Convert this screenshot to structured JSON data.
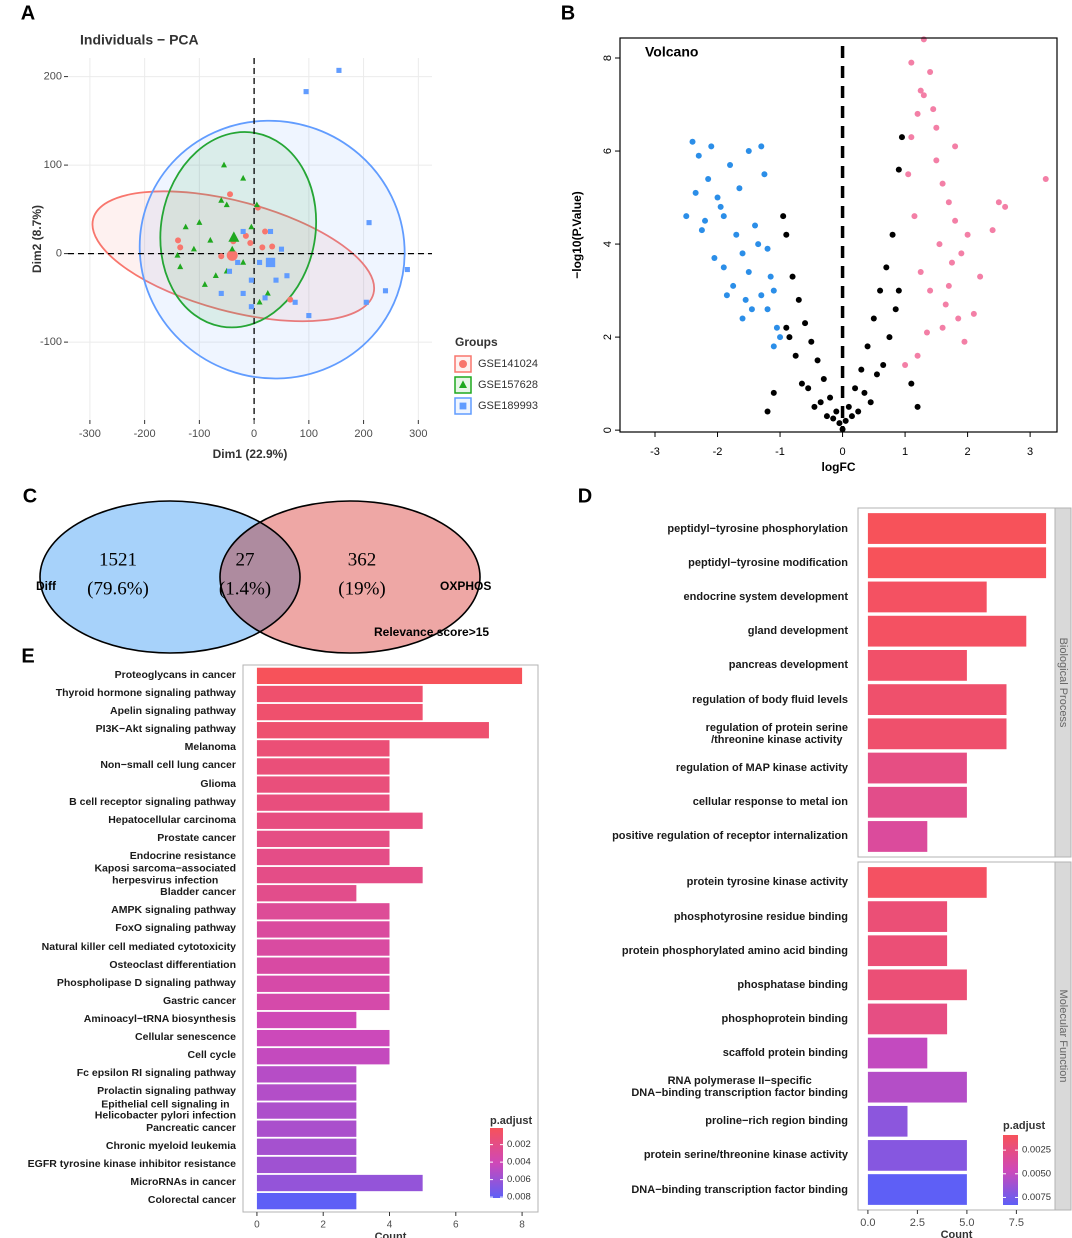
{
  "chart_data": [
    {
      "type": "pca",
      "panel_label": "A",
      "title": "Individuals − PCA",
      "xlabel": "Dim1 (22.9%)",
      "ylabel": "Dim2 (8.7%)",
      "xlim": [
        -340,
        325
      ],
      "ylim": [
        -188,
        221
      ],
      "xticks": [
        -300,
        -200,
        -100,
        0,
        100,
        200,
        300
      ],
      "yticks": [
        -100,
        0,
        100,
        200
      ],
      "vline": 0,
      "hline": 0,
      "grid": true,
      "legend_title": "Groups",
      "series": [
        {
          "name": "GSE141024",
          "color": "#f8766d",
          "marker": "circle",
          "x": [
            -139,
            -135,
            66,
            15,
            7,
            20,
            -38,
            -60,
            -7,
            -15,
            33,
            -44
          ],
          "y": [
            15,
            7,
            -52,
            7,
            52,
            25,
            14,
            -3,
            12,
            20,
            8,
            67
          ],
          "centroid": [
            -40,
            -2
          ],
          "ellipse": {
            "center": [
              -38,
              -3
            ],
            "radii": [
              265,
              62
            ],
            "angle": 15
          }
        },
        {
          "name": "GSE157628",
          "color": "#1fa81f",
          "marker": "triangle",
          "x": [
            -55,
            -20,
            -50,
            -100,
            -135,
            -140,
            -110,
            -80,
            -40,
            -90,
            -50,
            10,
            25,
            -5,
            -60,
            -125,
            -20,
            5,
            -70
          ],
          "y": [
            100,
            85,
            55,
            35,
            -15,
            -2,
            5,
            15,
            5,
            -35,
            -20,
            -55,
            -45,
            30,
            60,
            30,
            -10,
            55,
            -25
          ],
          "centroid": [
            -37,
            18
          ],
          "ellipse": {
            "center": [
              -29,
              27
            ],
            "radii": [
              141,
              111
            ],
            "angle": 10
          }
        },
        {
          "name": "GSE189993",
          "color": "#619cff",
          "marker": "square",
          "x": [
            155,
            95,
            30,
            210,
            280,
            240,
            205,
            -45,
            -30,
            -20,
            -5,
            20,
            100,
            -5,
            40,
            10,
            60,
            -20,
            50,
            -60,
            75
          ],
          "y": [
            207,
            183,
            25,
            35,
            -18,
            -42,
            -55,
            -20,
            -10,
            -45,
            -30,
            -50,
            -70,
            -60,
            -30,
            -10,
            -25,
            25,
            5,
            -45,
            -55
          ],
          "centroid": [
            30,
            -10
          ],
          "ellipse": {
            "center": [
              33,
              4.5
            ],
            "radii": [
              243,
              145
            ],
            "angle": 20
          }
        }
      ]
    },
    {
      "type": "volcano",
      "panel_label": "B",
      "title": "Volcano",
      "xlabel": "logFC",
      "ylabel": "−log10(P.Value)",
      "xlim": [
        -3.56,
        3.43
      ],
      "ylim": [
        -0.04,
        8.43
      ],
      "xticks": [
        -3,
        -2,
        -1,
        0,
        1,
        2,
        3
      ],
      "yticks": [
        0,
        2,
        4,
        6,
        8
      ],
      "vline": 0,
      "series": [
        {
          "color": "#000000",
          "x": [
            0,
            0.05,
            -0.05,
            0.1,
            -0.1,
            0.2,
            -0.2,
            0.3,
            -0.3,
            0.4,
            -0.4,
            0.5,
            -0.5,
            0.6,
            -0.6,
            0.7,
            -0.7,
            0.8,
            -0.8,
            0.9,
            -0.9,
            0.95,
            -0.95,
            0.15,
            -0.15,
            0.35,
            -0.35,
            0.55,
            -0.55,
            0.75,
            -0.75,
            0.85,
            -0.85,
            0.45,
            -0.45,
            0.65,
            -0.65,
            1.1,
            -1.1,
            1.2,
            -1.2,
            0.25,
            -0.25,
            0.9,
            -0.9
          ],
          "y": [
            0.02,
            0.2,
            0.15,
            0.5,
            0.4,
            0.9,
            0.7,
            1.3,
            1.1,
            1.8,
            1.5,
            2.4,
            1.9,
            3.0,
            2.3,
            3.5,
            2.8,
            4.2,
            3.3,
            5.6,
            4.2,
            6.3,
            4.6,
            0.3,
            0.25,
            0.8,
            0.6,
            1.2,
            0.9,
            2.0,
            1.6,
            2.6,
            2.0,
            0.6,
            0.5,
            1.4,
            1.0,
            1.0,
            0.8,
            0.5,
            0.4,
            0.4,
            0.3,
            3.0,
            2.2
          ]
        },
        {
          "color": "#2b8ee8",
          "x": [
            -2.5,
            -2.4,
            -2.3,
            -2.2,
            -2.1,
            -2.0,
            -1.9,
            -1.8,
            -1.7,
            -1.6,
            -1.5,
            -1.4,
            -1.3,
            -1.2,
            -1.1,
            -1.05,
            -2.25,
            -2.05,
            -1.85,
            -1.65,
            -1.45,
            -1.25,
            -1.15,
            -1.95,
            -1.75,
            -1.55,
            -1.35,
            -2.15,
            -1.9,
            -1.6,
            -1.3,
            -1.1,
            -2.35,
            -1.5,
            -1.2,
            -1.0
          ],
          "y": [
            4.6,
            6.2,
            5.9,
            4.5,
            6.1,
            5.0,
            3.5,
            5.7,
            4.2,
            3.8,
            6.0,
            4.4,
            6.1,
            3.9,
            3.0,
            2.2,
            4.3,
            3.7,
            2.9,
            5.2,
            2.6,
            5.5,
            3.3,
            4.8,
            3.1,
            2.8,
            4.0,
            5.4,
            4.6,
            2.4,
            2.9,
            1.8,
            5.1,
            3.4,
            2.6,
            2.0
          ]
        },
        {
          "color": "#f37fa6",
          "x": [
            1.1,
            1.2,
            1.3,
            1.4,
            1.5,
            1.6,
            1.7,
            1.8,
            1.9,
            2.0,
            2.1,
            2.2,
            2.5,
            2.6,
            3.25,
            1.05,
            1.15,
            1.25,
            1.35,
            1.45,
            1.55,
            1.65,
            1.75,
            1.85,
            1.95,
            1.3,
            1.5,
            1.2,
            1.4,
            1.6,
            1.1,
            1.8,
            2.4,
            1.7,
            1.0,
            1.25
          ],
          "y": [
            7.9,
            6.8,
            7.2,
            7.7,
            6.5,
            5.3,
            4.9,
            6.1,
            3.8,
            4.2,
            2.5,
            3.3,
            4.9,
            4.8,
            5.4,
            5.5,
            4.6,
            3.4,
            2.1,
            6.9,
            4.0,
            2.7,
            3.6,
            2.4,
            1.9,
            8.4,
            5.8,
            1.6,
            3.0,
            2.2,
            6.3,
            4.5,
            4.3,
            3.1,
            1.4,
            7.3
          ]
        }
      ]
    },
    {
      "type": "venn",
      "panel_label": "C",
      "sets": [
        "Diff",
        "OXPHOS"
      ],
      "values": [
        1521,
        27,
        362
      ],
      "percent_labels": [
        "(79.6%)",
        "(1.4%)",
        "(19%)"
      ],
      "annotation": "Relevance score>15"
    },
    {
      "type": "hbar",
      "panel_label": "D",
      "xlabel": "Count",
      "xlim": [
        -0.5,
        9.45
      ],
      "xticks": [
        {
          "value": 0,
          "label": "0.0"
        },
        2.5,
        {
          "value": 5,
          "label": "5.0"
        },
        7.5
      ],
      "legend_title": "p.adjust",
      "clim": [
        0.0009,
        0.0083
      ],
      "colormap": [
        "#f7525a",
        "#cf48b8",
        "#5e5ff6"
      ],
      "legend_ticks": [
        0.0025,
        {
          "value": 0.005,
          "label": "0.0050"
        },
        0.0075
      ],
      "facets": [
        {
          "name": "Biological Process",
          "categories": [
            "peptidyl−tyrosine phosphorylation",
            "peptidyl−tyrosine modification",
            "endocrine system development",
            "gland development",
            "pancreas development",
            "regulation of body fluid levels",
            "regulation of protein serine\n/threonine kinase activity",
            "regulation of MAP kinase activity",
            "cellular response to metal ion",
            "positive regulation of receptor internalization"
          ],
          "values": [
            9,
            9,
            6,
            8,
            5,
            7,
            7,
            5,
            5,
            3
          ],
          "p_adjust": [
            0.0009,
            0.0009,
            0.0012,
            0.0012,
            0.0015,
            0.0016,
            0.0016,
            0.0025,
            0.0028,
            0.0035
          ]
        },
        {
          "name": "Molecular Function",
          "categories": [
            "protein tyrosine kinase activity",
            "phosphotyrosine residue binding",
            "protein phosphorylated amino acid binding",
            "phosphatase binding",
            "phosphoprotein binding",
            "scaffold protein binding",
            "RNA polymerase II−specific\nDNA−binding transcription factor binding",
            "proline−rich region binding",
            "protein serine/threonine kinase activity",
            "DNA−binding transcription factor binding"
          ],
          "values": [
            6,
            4,
            4,
            5,
            4,
            3,
            5,
            2,
            5,
            5
          ],
          "p_adjust": [
            0.0012,
            0.002,
            0.002,
            0.002,
            0.0025,
            0.005,
            0.0055,
            0.0068,
            0.007,
            0.0083
          ]
        }
      ]
    },
    {
      "type": "hbar",
      "panel_label": "E",
      "xlabel": "Count",
      "xlim": [
        -0.42,
        8.48
      ],
      "xticks": [
        0,
        2,
        4,
        6,
        8
      ],
      "legend_title": "p.adjust",
      "clim": [
        0.0001,
        0.0081
      ],
      "colormap": [
        "#f7525a",
        "#cf48b8",
        "#5e5ff6"
      ],
      "legend_ticks": [
        0.002,
        0.004,
        0.006,
        0.008
      ],
      "categories": [
        "Proteoglycans in cancer",
        "Thyroid hormone signaling pathway",
        "Apelin signaling pathway",
        "PI3K−Akt signaling pathway",
        "Melanoma",
        "Non−small cell lung cancer",
        "Glioma",
        "B cell receptor signaling pathway",
        "Hepatocellular carcinoma",
        "Prostate cancer",
        "Endocrine resistance",
        "Kaposi sarcoma−associated\nherpesvirus infection",
        "Bladder cancer",
        "AMPK signaling pathway",
        "FoxO signaling pathway",
        "Natural killer cell mediated cytotoxicity",
        "Osteoclast differentiation",
        "Phospholipase D signaling pathway",
        "Gastric cancer",
        "Aminoacyl−tRNA biosynthesis",
        "Cellular senescence",
        "Cell cycle",
        "Fc epsilon RI signaling pathway",
        "Prolactin signaling pathway",
        "Epithelial cell signaling in\nHelicobacter pylori infection",
        "Pancreatic cancer",
        "Chronic myeloid leukemia",
        "EGFR tyrosine kinase inhibitor resistance",
        "MicroRNAs in cancer",
        "Colorectal cancer"
      ],
      "values": [
        8,
        5,
        5,
        7,
        4,
        4,
        4,
        4,
        5,
        4,
        4,
        5,
        3,
        4,
        4,
        4,
        4,
        4,
        4,
        3,
        4,
        4,
        3,
        3,
        3,
        3,
        3,
        3,
        5,
        3
      ],
      "p_adjust": [
        0.0001,
        0.0009,
        0.0009,
        0.001,
        0.0013,
        0.0014,
        0.0015,
        0.0016,
        0.0017,
        0.0019,
        0.002,
        0.002,
        0.0022,
        0.0027,
        0.003,
        0.0031,
        0.0032,
        0.0034,
        0.0035,
        0.004,
        0.0042,
        0.0045,
        0.005,
        0.0051,
        0.0053,
        0.0054,
        0.0056,
        0.0058,
        0.0062,
        0.0081
      ]
    }
  ]
}
